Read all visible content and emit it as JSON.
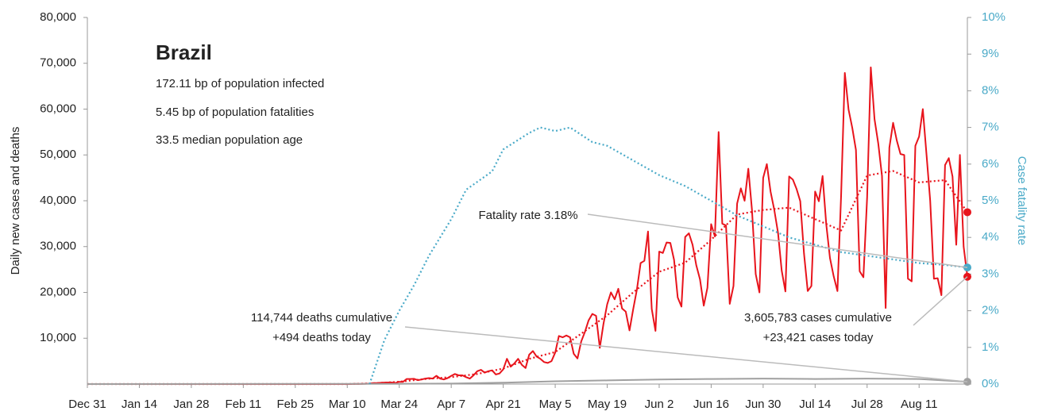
{
  "chart_data": {
    "type": "line",
    "title": "Brazil",
    "subtitle": [
      "172.11 bp of population infected",
      "5.45 bp of population fatalities",
      "33.5 median population age"
    ],
    "y_label": "Daily new cases and deaths",
    "y2_label": "Case fatality rate",
    "x": [
      0,
      70,
      71,
      72,
      73,
      74,
      75,
      76,
      77,
      78,
      79,
      80,
      81,
      82,
      83,
      84,
      85,
      86,
      87,
      88,
      89,
      90,
      91,
      92,
      93,
      94,
      95,
      96,
      97,
      98,
      99,
      100,
      101,
      102,
      103,
      104,
      105,
      106,
      107,
      108,
      109,
      110,
      111,
      112,
      113,
      114,
      115,
      116,
      117,
      118,
      119,
      120,
      121,
      122,
      123,
      124,
      125,
      126,
      127,
      128,
      129,
      130,
      131,
      132,
      133,
      134,
      135,
      136,
      137,
      138,
      139,
      140,
      141,
      142,
      143,
      144,
      145,
      146,
      147,
      148,
      149,
      150,
      151,
      152,
      153,
      154,
      155,
      156,
      157,
      158,
      159,
      160,
      161,
      162,
      163,
      164,
      165,
      166,
      167,
      168,
      169,
      170,
      171,
      172,
      173,
      174,
      175,
      176,
      177,
      178,
      179,
      180,
      181,
      182,
      183,
      184,
      185,
      186,
      187,
      188,
      189,
      190,
      191,
      192,
      193,
      194,
      195,
      196,
      197,
      198,
      199,
      200,
      201,
      202,
      203,
      204,
      205,
      206,
      207,
      208,
      209,
      210,
      211,
      212,
      213,
      214,
      215,
      216,
      217,
      218,
      219,
      220,
      221,
      222,
      223,
      224,
      225,
      226,
      227,
      228,
      229,
      230,
      231,
      232,
      233,
      234,
      235,
      236,
      237
    ],
    "xlim": [
      0,
      237
    ],
    "xticks": [
      {
        "value": 0,
        "label": "Dec 31"
      },
      {
        "value": 14,
        "label": "Jan 14"
      },
      {
        "value": 28,
        "label": "Jan 28"
      },
      {
        "value": 42,
        "label": "Feb 11"
      },
      {
        "value": 56,
        "label": "Feb 25"
      },
      {
        "value": 70,
        "label": "Mar 10"
      },
      {
        "value": 84,
        "label": "Mar 24"
      },
      {
        "value": 98,
        "label": "Apr 7"
      },
      {
        "value": 112,
        "label": "Apr 21"
      },
      {
        "value": 126,
        "label": "May 5"
      },
      {
        "value": 140,
        "label": "May 19"
      },
      {
        "value": 154,
        "label": "Jun 2"
      },
      {
        "value": 168,
        "label": "Jun 16"
      },
      {
        "value": 182,
        "label": "Jun 30"
      },
      {
        "value": 196,
        "label": "Jul 14"
      },
      {
        "value": 210,
        "label": "Jul 28"
      },
      {
        "value": 224,
        "label": "Aug 11"
      }
    ],
    "ylim": [
      0,
      80000
    ],
    "yticks": [
      {
        "value": 10000,
        "label": "10,000"
      },
      {
        "value": 20000,
        "label": "20,000"
      },
      {
        "value": 30000,
        "label": "30,000"
      },
      {
        "value": 40000,
        "label": "40,000"
      },
      {
        "value": 50000,
        "label": "50,000"
      },
      {
        "value": 60000,
        "label": "60,000"
      },
      {
        "value": 70000,
        "label": "70,000"
      },
      {
        "value": 80000,
        "label": "80,000"
      }
    ],
    "y2lim": [
      0,
      10
    ],
    "y2ticks": [
      {
        "value": 0,
        "label": "0%"
      },
      {
        "value": 1,
        "label": "1%"
      },
      {
        "value": 2,
        "label": "2%"
      },
      {
        "value": 3,
        "label": "3%"
      },
      {
        "value": 4,
        "label": "4%"
      },
      {
        "value": 5,
        "label": "5%"
      },
      {
        "value": 6,
        "label": "6%"
      },
      {
        "value": 7,
        "label": "7%"
      },
      {
        "value": 8,
        "label": "8%"
      },
      {
        "value": 9,
        "label": "9%"
      },
      {
        "value": 10,
        "label": "10%"
      }
    ],
    "series": [
      {
        "color": "#e8141c",
        "style": "solid",
        "values": [
          0,
          0,
          0,
          30,
          25,
          50,
          75,
          110,
          230,
          230,
          270,
          330,
          340,
          350,
          250,
          480,
          480,
          1100,
          1100,
          1150,
          850,
          1000,
          1200,
          1300,
          1200,
          1800,
          1200,
          1000,
          1300,
          1800,
          2200,
          1900,
          1900,
          1500,
          1200,
          1900,
          2800,
          3100,
          2500,
          2800,
          3000,
          2100,
          2300,
          3200,
          5500,
          3800,
          4500,
          5500,
          4200,
          3500,
          6400,
          7200,
          6000,
          5500,
          4800,
          4600,
          5000,
          6900,
          10500,
          10200,
          10600,
          10200,
          6600,
          5600,
          9300,
          11400,
          13900,
          15300,
          14900,
          7900,
          13100,
          17400,
          20000,
          18500,
          20800,
          16500,
          15800,
          11700,
          16300,
          20600,
          26400,
          26900,
          33300,
          16400,
          11600,
          28900,
          28600,
          30900,
          30800,
          27100,
          18900,
          16900,
          32100,
          32900,
          30400,
          25900,
          22800,
          17100,
          21000,
          34900,
          32200,
          55000,
          35000,
          34600,
          17500,
          21400,
          39400,
          42700,
          40000,
          47000,
          38000,
          24000,
          20000,
          45000,
          48000,
          42000,
          38000,
          33000,
          24800,
          20200,
          45300,
          44600,
          42600,
          39900,
          28500,
          20300,
          21400,
          42000,
          39900,
          45400,
          34900,
          27500,
          23500,
          20300,
          41000,
          67900,
          59900,
          55900,
          51100,
          24600,
          23300,
          40800,
          69100,
          57800,
          52500,
          45400,
          16600,
          51600,
          57000,
          53100,
          50200,
          50000,
          23000,
          22400,
          52000,
          54000,
          60000,
          50000,
          40000,
          23000,
          23100,
          19400,
          47800,
          49300,
          45300,
          30400,
          50000,
          30000,
          23421
        ]
      },
      {
        "color": "#e8141c",
        "style": "dotted",
        "x": [
          0,
          70,
          77,
          84,
          91,
          98,
          105,
          112,
          119,
          126,
          133,
          140,
          147,
          154,
          161,
          168,
          175,
          182,
          189,
          196,
          203,
          210,
          217,
          224,
          231,
          237
        ],
        "values": [
          0,
          0,
          150,
          500,
          1100,
          1500,
          2200,
          3400,
          5500,
          7000,
          11000,
          15000,
          20000,
          24500,
          26500,
          31500,
          37000,
          38000,
          38500,
          36000,
          33500,
          45500,
          46500,
          44000,
          44500,
          37500
        ]
      },
      {
        "color": "#a0a0a0",
        "style": "solid",
        "x": [
          0,
          84,
          98,
          112,
          126,
          140,
          154,
          168,
          182,
          196,
          210,
          224,
          237
        ],
        "values": [
          0,
          50,
          100,
          300,
          600,
          800,
          1000,
          1100,
          1200,
          1100,
          1200,
          1100,
          494
        ]
      },
      {
        "color": "#4aaac8",
        "style": "dotted",
        "axis": "y2",
        "x": [
          76,
          77,
          80,
          84,
          88,
          92,
          98,
          102,
          109,
          112,
          119,
          122,
          126,
          130,
          136,
          140,
          147,
          154,
          161,
          168,
          175,
          182,
          189,
          196,
          203,
          210,
          217,
          224,
          231,
          237
        ],
        "values": [
          0,
          0.3,
          1.2,
          2.0,
          2.7,
          3.5,
          4.5,
          5.3,
          5.8,
          6.4,
          6.85,
          7.0,
          6.9,
          7.0,
          6.6,
          6.5,
          6.1,
          5.7,
          5.4,
          5.0,
          4.6,
          4.3,
          4.0,
          3.8,
          3.6,
          3.5,
          3.4,
          3.3,
          3.25,
          3.18
        ]
      }
    ],
    "annotations": [
      {
        "lines": [
          "Fatality rate 3.18%"
        ],
        "series": 3
      },
      {
        "lines": [
          "114,744 deaths cumulative",
          "+494 deaths today"
        ],
        "series": 2
      },
      {
        "lines": [
          "3,605,783 cases cumulative",
          "+23,421 cases today"
        ],
        "series": 0
      }
    ]
  }
}
